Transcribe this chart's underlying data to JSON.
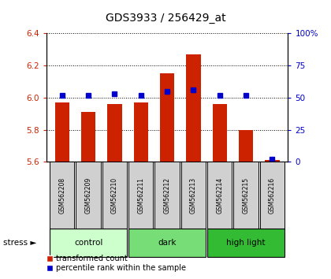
{
  "title": "GDS3933 / 256429_at",
  "samples": [
    "GSM562208",
    "GSM562209",
    "GSM562210",
    "GSM562211",
    "GSM562212",
    "GSM562213",
    "GSM562214",
    "GSM562215",
    "GSM562216"
  ],
  "transformed_counts": [
    5.97,
    5.91,
    5.96,
    5.97,
    6.15,
    6.27,
    5.96,
    5.8,
    5.61
  ],
  "percentile_ranks": [
    52,
    52,
    53,
    52,
    55,
    56,
    52,
    52,
    2
  ],
  "ylim": [
    5.6,
    6.4
  ],
  "ylim_right": [
    0,
    100
  ],
  "yticks_left": [
    5.6,
    5.8,
    6.0,
    6.2,
    6.4
  ],
  "yticks_right": [
    0,
    25,
    50,
    75,
    100
  ],
  "groups": [
    {
      "label": "control",
      "indices": [
        0,
        1,
        2
      ],
      "color": "#ccffcc"
    },
    {
      "label": "dark",
      "indices": [
        3,
        4,
        5
      ],
      "color": "#77dd77"
    },
    {
      "label": "high light",
      "indices": [
        6,
        7,
        8
      ],
      "color": "#33bb33"
    }
  ],
  "bar_color": "#cc2200",
  "dot_color": "#0000cc",
  "bar_width": 0.55,
  "title_color": "#000000",
  "left_tick_color": "#cc2200",
  "right_tick_color": "#0000cc",
  "stress_label": "stress",
  "legend_items": [
    "transformed count",
    "percentile rank within the sample"
  ],
  "sample_box_color": "#d0d0d0",
  "fig_width": 4.2,
  "fig_height": 3.54,
  "dpi": 100
}
